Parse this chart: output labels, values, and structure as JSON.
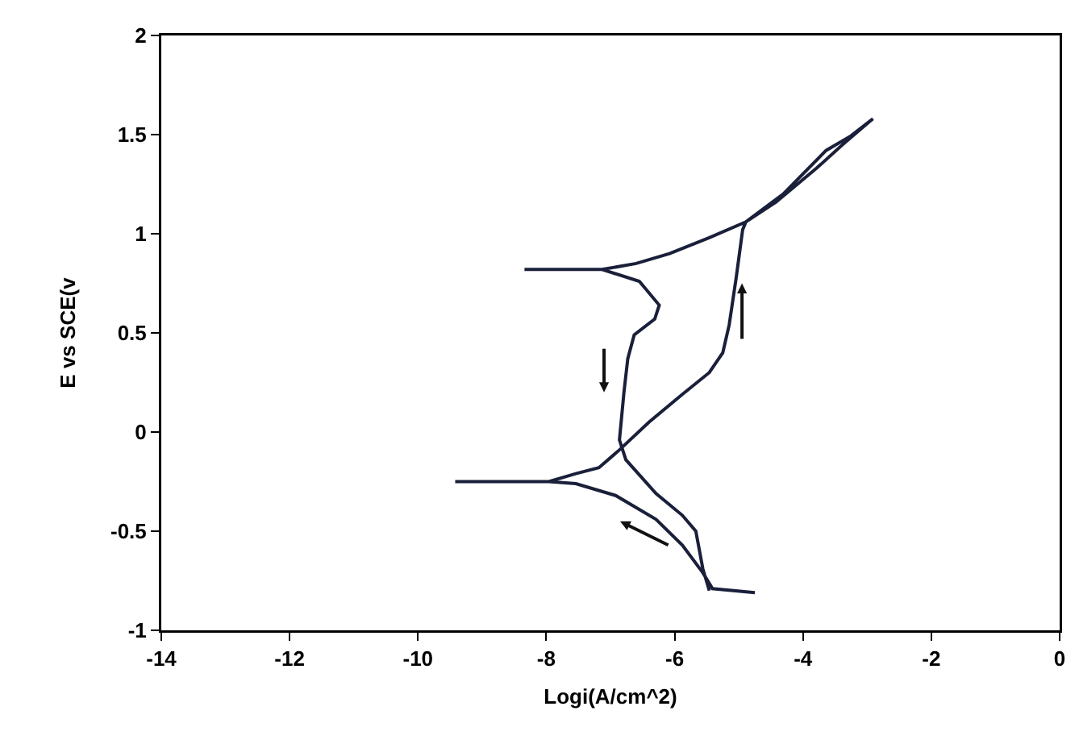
{
  "chart_data": {
    "type": "line",
    "xlabel": "Logi(A/cm^2)",
    "ylabel": "E vs SCE(v",
    "xlim": [
      -14,
      0
    ],
    "xticks": [
      -14,
      -12,
      -10,
      -8,
      -6,
      -4,
      -2,
      0
    ],
    "ylim": [
      -1,
      2
    ],
    "yticks": [
      -1,
      -0.5,
      0,
      0.5,
      1,
      1.5,
      2
    ],
    "marker": "none",
    "line_style": "solid",
    "series": [
      {
        "color": "#1a1f3a",
        "x": [
          -4.75,
          -5.41,
          -5.56,
          -5.88,
          -6.29,
          -6.92,
          -7.54,
          -7.96,
          -9.42,
          -7.96,
          -7.54,
          -7.18,
          -6.86,
          -6.4,
          -5.88,
          -5.46,
          -5.25,
          -5.15,
          -5.04,
          -4.94,
          -4.89,
          -4.31,
          -3.64,
          -3.27,
          -2.91,
          -3.38,
          -3.79,
          -4.42,
          -4.89,
          -5.46,
          -6.08,
          -6.6,
          -7.13,
          -8.34,
          -7.13,
          -6.55,
          -6.24,
          -6.31,
          -6.63,
          -6.73,
          -6.79,
          -6.86,
          -6.76,
          -6.29,
          -5.88,
          -5.67,
          -5.56,
          -5.46
        ],
        "values": [
          -0.81,
          -0.79,
          -0.71,
          -0.57,
          -0.44,
          -0.32,
          -0.26,
          -0.25,
          -0.25,
          -0.25,
          -0.21,
          -0.18,
          -0.09,
          0.05,
          0.19,
          0.3,
          0.4,
          0.54,
          0.78,
          1.02,
          1.06,
          1.2,
          1.42,
          1.49,
          1.58,
          1.45,
          1.33,
          1.16,
          1.06,
          0.98,
          0.9,
          0.85,
          0.82,
          0.82,
          0.82,
          0.76,
          0.64,
          0.57,
          0.49,
          0.37,
          0.2,
          -0.04,
          -0.14,
          -0.31,
          -0.42,
          -0.5,
          -0.69,
          -0.8
        ]
      }
    ]
  }
}
